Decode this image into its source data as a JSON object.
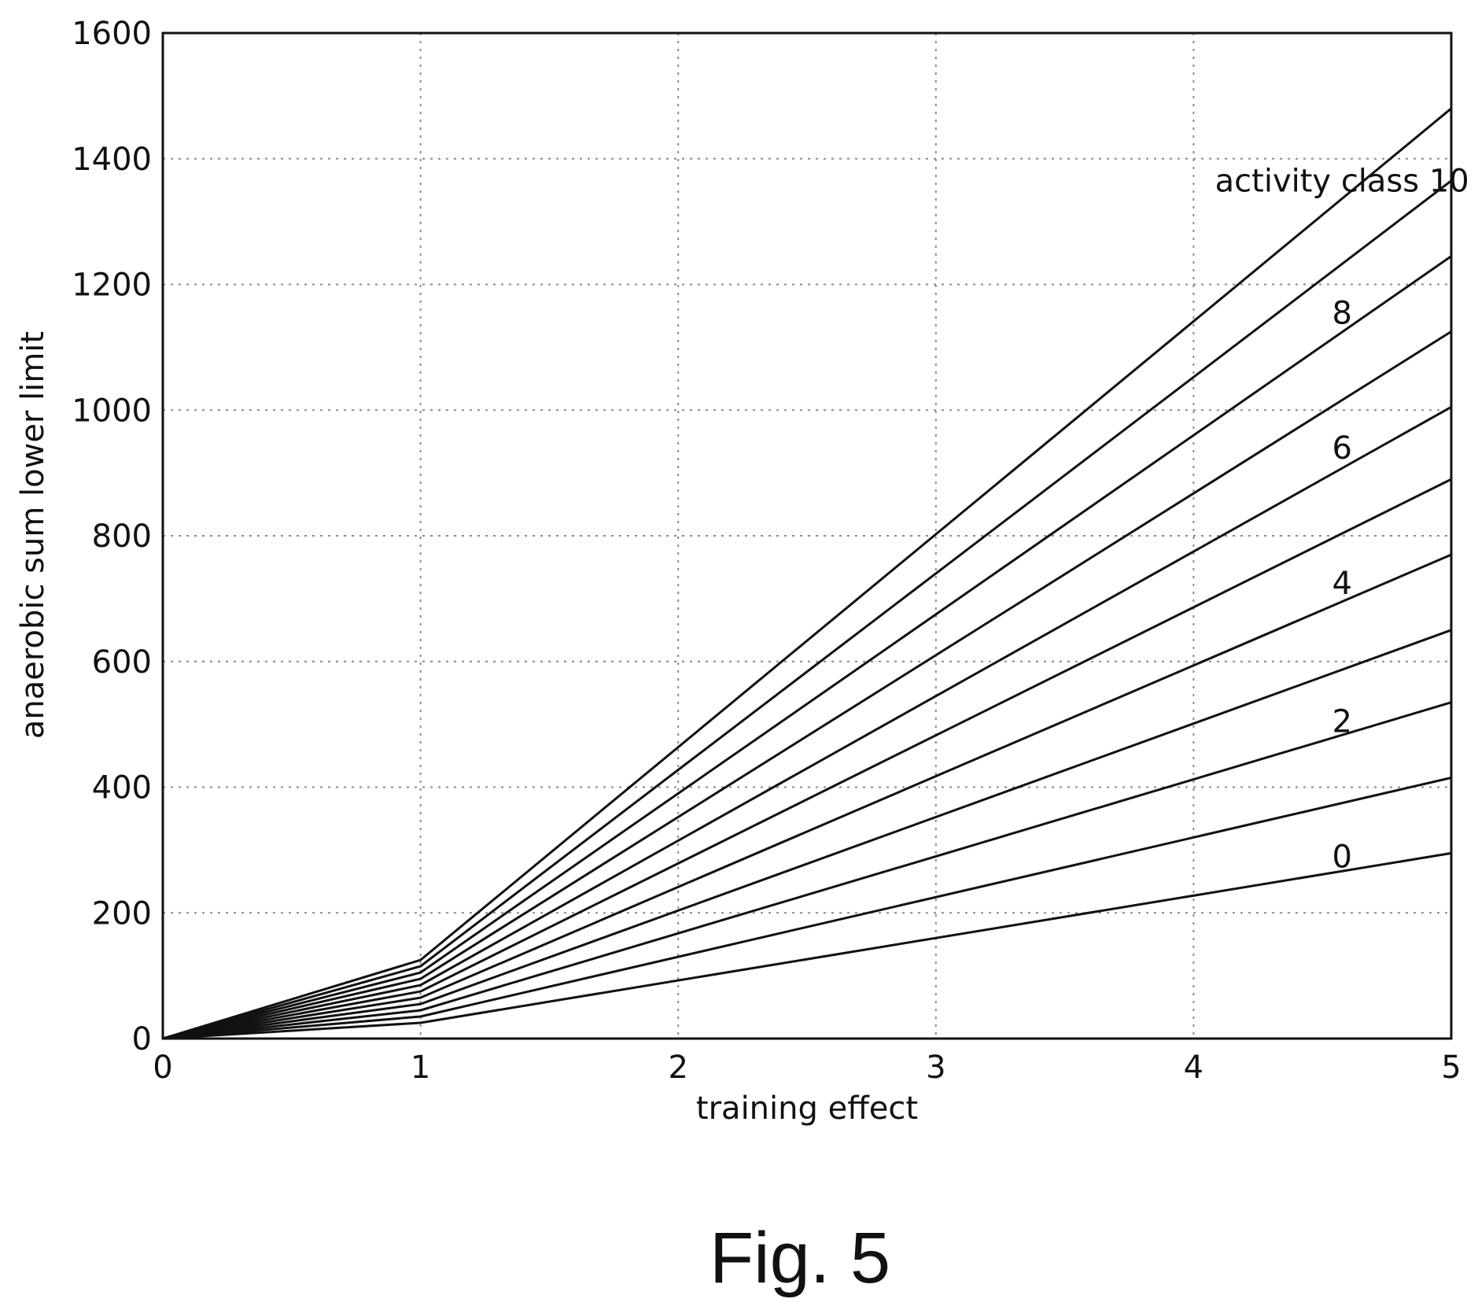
{
  "figure_caption": "Fig. 5",
  "chart_data": {
    "type": "line",
    "title": "",
    "xlabel": "training effect",
    "ylabel": "anaerobic sum lower limit",
    "xlim": [
      0,
      5
    ],
    "ylim": [
      0,
      1600
    ],
    "x_ticks": [
      0,
      1,
      2,
      3,
      4,
      5
    ],
    "y_ticks": [
      0,
      200,
      400,
      600,
      800,
      1000,
      1200,
      1400,
      1600
    ],
    "grid": true,
    "series": [
      {
        "name": "0",
        "x": [
          0,
          1,
          5
        ],
        "y": [
          0,
          25,
          295
        ],
        "label_text": "0",
        "label_at": [
          4.5,
          290
        ]
      },
      {
        "name": "",
        "x": [
          0,
          1,
          5
        ],
        "y": [
          0,
          35,
          415
        ]
      },
      {
        "name": "2",
        "x": [
          0,
          1,
          5
        ],
        "y": [
          0,
          45,
          535
        ],
        "label_text": "2",
        "label_at": [
          4.5,
          505
        ]
      },
      {
        "name": "",
        "x": [
          0,
          1,
          5
        ],
        "y": [
          0,
          55,
          650
        ]
      },
      {
        "name": "4",
        "x": [
          0,
          1,
          5
        ],
        "y": [
          0,
          65,
          770
        ],
        "label_text": "4",
        "label_at": [
          4.5,
          725
        ]
      },
      {
        "name": "",
        "x": [
          0,
          1,
          5
        ],
        "y": [
          0,
          75,
          890
        ]
      },
      {
        "name": "6",
        "x": [
          0,
          1,
          5
        ],
        "y": [
          0,
          85,
          1005
        ],
        "label_text": "6",
        "label_at": [
          4.5,
          940
        ]
      },
      {
        "name": "",
        "x": [
          0,
          1,
          5
        ],
        "y": [
          0,
          95,
          1125
        ]
      },
      {
        "name": "8",
        "x": [
          0,
          1,
          5
        ],
        "y": [
          0,
          105,
          1245
        ],
        "label_text": "8",
        "label_at": [
          4.5,
          1155
        ]
      },
      {
        "name": "",
        "x": [
          0,
          1,
          5
        ],
        "y": [
          0,
          115,
          1365
        ]
      },
      {
        "name": "activity class 10",
        "x": [
          0,
          1,
          5
        ],
        "y": [
          0,
          125,
          1480
        ],
        "label_text": "activity class 10",
        "label_at": [
          4.5,
          1365
        ]
      }
    ]
  }
}
